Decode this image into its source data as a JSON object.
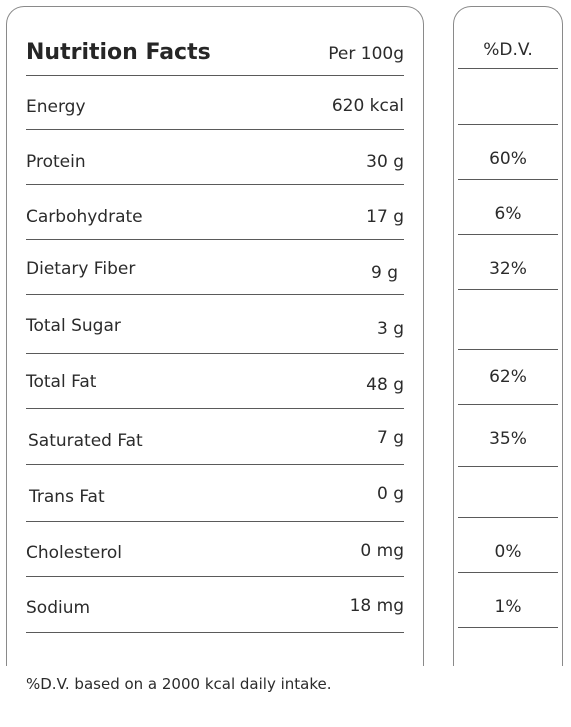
{
  "header": {
    "title": "Nutrition Facts",
    "per": "Per 100g",
    "dv_label": "%D.V."
  },
  "rows": [
    {
      "label": "Energy",
      "value": "620 kcal",
      "dv": ""
    },
    {
      "label": "Protein",
      "value": "30 g",
      "dv": "60%"
    },
    {
      "label": "Carbohydrate",
      "value": "17 g",
      "dv": "6%"
    },
    {
      "label": "Dietary Fiber",
      "value": "9 g",
      "dv": "32%"
    },
    {
      "label": "Total Sugar",
      "value": "3 g",
      "dv": ""
    },
    {
      "label": "Total Fat",
      "value": "48 g",
      "dv": "62%"
    },
    {
      "label": "Saturated Fat",
      "value": "7 g",
      "dv": "35%"
    },
    {
      "label": "Trans Fat",
      "value": "0 g",
      "dv": ""
    },
    {
      "label": "Cholesterol",
      "value": "0 mg",
      "dv": "0%"
    },
    {
      "label": "Sodium",
      "value": "18 mg",
      "dv": "1%"
    }
  ],
  "footnote": "%D.V. based on a 2000 kcal daily intake."
}
